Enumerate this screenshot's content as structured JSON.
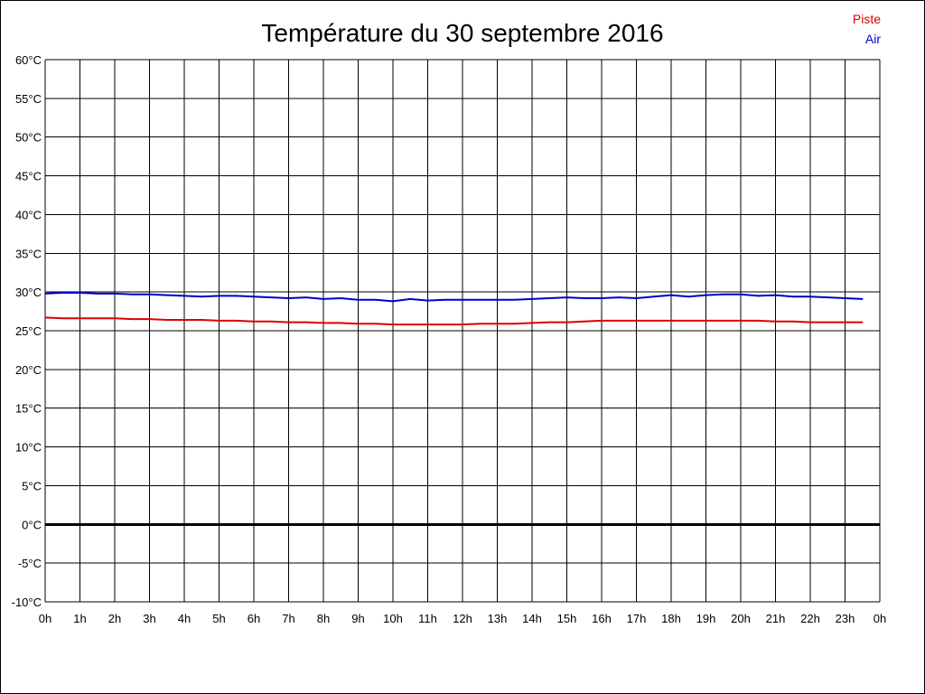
{
  "chart_data": {
    "type": "line",
    "title": "Température du 30 septembre 2016",
    "xlabel": "",
    "ylabel": "",
    "ylim": [
      -10,
      60
    ],
    "xlim": [
      0,
      24
    ],
    "grid": true,
    "legend_position": "top-right",
    "y_ticks": [
      "-10°C",
      "-5°C",
      "0°C",
      "5°C",
      "10°C",
      "15°C",
      "20°C",
      "25°C",
      "30°C",
      "35°C",
      "40°C",
      "45°C",
      "50°C",
      "55°C",
      "60°C"
    ],
    "y_tick_values": [
      -10,
      -5,
      0,
      5,
      10,
      15,
      20,
      25,
      30,
      35,
      40,
      45,
      50,
      55,
      60
    ],
    "x_ticks": [
      "0h",
      "1h",
      "2h",
      "3h",
      "4h",
      "5h",
      "6h",
      "7h",
      "8h",
      "9h",
      "10h",
      "11h",
      "12h",
      "13h",
      "14h",
      "15h",
      "16h",
      "17h",
      "18h",
      "19h",
      "20h",
      "21h",
      "22h",
      "23h",
      "0h"
    ],
    "x_tick_values": [
      0,
      1,
      2,
      3,
      4,
      5,
      6,
      7,
      8,
      9,
      10,
      11,
      12,
      13,
      14,
      15,
      16,
      17,
      18,
      19,
      20,
      21,
      22,
      23,
      24
    ],
    "x": [
      0,
      0.5,
      1,
      1.5,
      2,
      2.5,
      3,
      3.5,
      4,
      4.5,
      5,
      5.5,
      6,
      6.5,
      7,
      7.5,
      8,
      8.5,
      9,
      9.5,
      10,
      10.5,
      11,
      11.5,
      12,
      12.5,
      13,
      13.5,
      14,
      14.5,
      15,
      15.5,
      16,
      16.5,
      17,
      17.5,
      18,
      18.5,
      19,
      19.5,
      20,
      20.5,
      21,
      21.5,
      22,
      22.5,
      23,
      23.5
    ],
    "series": [
      {
        "name": "Piste",
        "color": "#dd0000",
        "values": [
          26.7,
          26.6,
          26.6,
          26.6,
          26.6,
          26.5,
          26.5,
          26.4,
          26.4,
          26.4,
          26.3,
          26.3,
          26.2,
          26.2,
          26.1,
          26.1,
          26.0,
          26.0,
          25.9,
          25.9,
          25.8,
          25.8,
          25.8,
          25.8,
          25.8,
          25.9,
          25.9,
          25.9,
          26.0,
          26.1,
          26.1,
          26.2,
          26.3,
          26.3,
          26.3,
          26.3,
          26.3,
          26.3,
          26.3,
          26.3,
          26.3,
          26.3,
          26.2,
          26.2,
          26.1,
          26.1,
          26.1,
          26.1
        ]
      },
      {
        "name": "Air",
        "color": "#0000cc",
        "values": [
          29.8,
          29.9,
          29.9,
          29.8,
          29.8,
          29.7,
          29.7,
          29.6,
          29.5,
          29.4,
          29.5,
          29.5,
          29.4,
          29.3,
          29.2,
          29.3,
          29.1,
          29.2,
          29.0,
          29.0,
          28.8,
          29.1,
          28.9,
          29.0,
          29.0,
          29.0,
          29.0,
          29.0,
          29.1,
          29.2,
          29.3,
          29.2,
          29.2,
          29.3,
          29.2,
          29.4,
          29.6,
          29.4,
          29.6,
          29.7,
          29.7,
          29.5,
          29.6,
          29.4,
          29.4,
          29.3,
          29.2,
          29.1
        ]
      }
    ]
  }
}
